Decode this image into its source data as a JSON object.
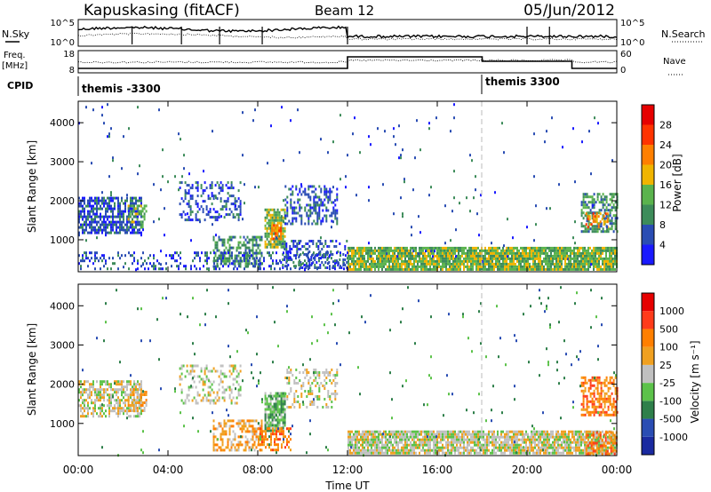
{
  "header": {
    "station": "Kapuskasing (fitACF)",
    "beam": "Beam 12",
    "date": "05/Jun/2012"
  },
  "top_panels": {
    "nsky_label": "N.Sky",
    "nsky_ticks": [
      "10^5",
      "10^0"
    ],
    "nsearch_label": "N.Search",
    "nsearch_ticks": [
      "10^5",
      "10^0"
    ],
    "freq_label": "Freq.",
    "freq_unit": "[MHz]",
    "freq_ticks": [
      "18",
      "8"
    ],
    "nave_label": "Nave",
    "nave_ticks": [
      "60",
      "0"
    ],
    "cpid_label": "CPID",
    "cpid_entries": [
      {
        "text": "themis -3300",
        "time": 0
      },
      {
        "text": "themis 3300",
        "time": 18
      }
    ]
  },
  "colors": {
    "power_scale": [
      "#1a1aff",
      "#2a4db3",
      "#3d8c5a",
      "#5ab34d",
      "#f0b400",
      "#ff7f00",
      "#ff3300",
      "#e60000"
    ],
    "velocity_scale": [
      "#1a2aa0",
      "#2a4db3",
      "#2e7f4a",
      "#5cc24a",
      "#c0c0c0",
      "#f0a020",
      "#ff7f00",
      "#ff3b1a",
      "#e60000"
    ]
  },
  "chart_data": [
    {
      "type": "heatmap",
      "panel": "power",
      "xlabel": "",
      "ylabel": "Slant Range [km]",
      "xlim": [
        0,
        24
      ],
      "ylim": [
        180,
        4550
      ],
      "yticks": [
        1000,
        2000,
        3000,
        4000
      ],
      "colorbar_label": "Power [dB]",
      "colorbar_ticks": [
        "28",
        "24",
        "20",
        "16",
        "12",
        "8",
        "4"
      ],
      "regions": [
        {
          "x": [
            0.0,
            2.8
          ],
          "y": [
            1200,
            2100
          ],
          "density": 0.7,
          "level": 1
        },
        {
          "x": [
            2.2,
            3.0
          ],
          "y": [
            1300,
            1900
          ],
          "density": 0.5,
          "level": 3
        },
        {
          "x": [
            4.5,
            7.2
          ],
          "y": [
            1500,
            2500
          ],
          "density": 0.35,
          "level": 1
        },
        {
          "x": [
            6.0,
            8.2
          ],
          "y": [
            300,
            1100
          ],
          "density": 0.55,
          "level": 2
        },
        {
          "x": [
            8.3,
            9.2
          ],
          "y": [
            800,
            1800
          ],
          "density": 0.8,
          "level": 3
        },
        {
          "x": [
            8.6,
            9.0
          ],
          "y": [
            1000,
            1400
          ],
          "density": 0.8,
          "level": 5
        },
        {
          "x": [
            9.2,
            11.5
          ],
          "y": [
            1400,
            2400
          ],
          "density": 0.4,
          "level": 1
        },
        {
          "x": [
            9.0,
            12.0
          ],
          "y": [
            300,
            1000
          ],
          "density": 0.35,
          "level": 1
        },
        {
          "x": [
            12.0,
            24.0
          ],
          "y": [
            230,
            820
          ],
          "density": 0.9,
          "level": 3
        },
        {
          "x": [
            22.4,
            24.0
          ],
          "y": [
            1200,
            2200
          ],
          "density": 0.6,
          "level": 2
        },
        {
          "x": [
            22.6,
            23.6
          ],
          "y": [
            1300,
            1700
          ],
          "density": 0.5,
          "level": 5
        },
        {
          "x": [
            0.0,
            12.0
          ],
          "y": [
            230,
            700
          ],
          "density": 0.25,
          "level": 1
        },
        {
          "x": [
            0.0,
            24.0
          ],
          "y": [
            200,
            4500
          ],
          "density": 0.012,
          "level": 1
        }
      ]
    },
    {
      "type": "heatmap",
      "panel": "velocity",
      "xlabel": "Time UT",
      "ylabel": "Slant Range [km]",
      "xlim": [
        0,
        24
      ],
      "ylim": [
        180,
        4550
      ],
      "yticks": [
        1000,
        2000,
        3000,
        4000
      ],
      "xticks": [
        "00:00",
        "04:00",
        "08:00",
        "12:00",
        "16:00",
        "20:00",
        "00:00"
      ],
      "colorbar_label": "Velocity [m s⁻¹]",
      "colorbar_ticks": [
        "1000",
        "500",
        "100",
        "25",
        "-25",
        "-100",
        "-500",
        "-1000"
      ],
      "regions": [
        {
          "x": [
            0.0,
            2.8
          ],
          "y": [
            1200,
            2100
          ],
          "density": 0.6,
          "level": 4
        },
        {
          "x": [
            2.2,
            3.0
          ],
          "y": [
            1300,
            1900
          ],
          "density": 0.5,
          "level": 5
        },
        {
          "x": [
            4.5,
            7.2
          ],
          "y": [
            1500,
            2500
          ],
          "density": 0.3,
          "level": 4
        },
        {
          "x": [
            6.0,
            8.2
          ],
          "y": [
            300,
            1100
          ],
          "density": 0.5,
          "level": 5
        },
        {
          "x": [
            8.3,
            9.2
          ],
          "y": [
            800,
            1800
          ],
          "density": 0.8,
          "level": 3
        },
        {
          "x": [
            8.0,
            9.5
          ],
          "y": [
            300,
            900
          ],
          "density": 0.5,
          "level": 6
        },
        {
          "x": [
            9.2,
            11.5
          ],
          "y": [
            1400,
            2400
          ],
          "density": 0.3,
          "level": 4
        },
        {
          "x": [
            12.0,
            24.0
          ],
          "y": [
            230,
            820
          ],
          "density": 0.85,
          "level": 4
        },
        {
          "x": [
            22.4,
            24.0
          ],
          "y": [
            1200,
            2200
          ],
          "density": 0.6,
          "level": 6
        },
        {
          "x": [
            22.6,
            24.0
          ],
          "y": [
            230,
            800
          ],
          "density": 0.5,
          "level": 6
        },
        {
          "x": [
            0.0,
            24.0
          ],
          "y": [
            200,
            4500
          ],
          "density": 0.012,
          "level": 2
        }
      ]
    }
  ]
}
